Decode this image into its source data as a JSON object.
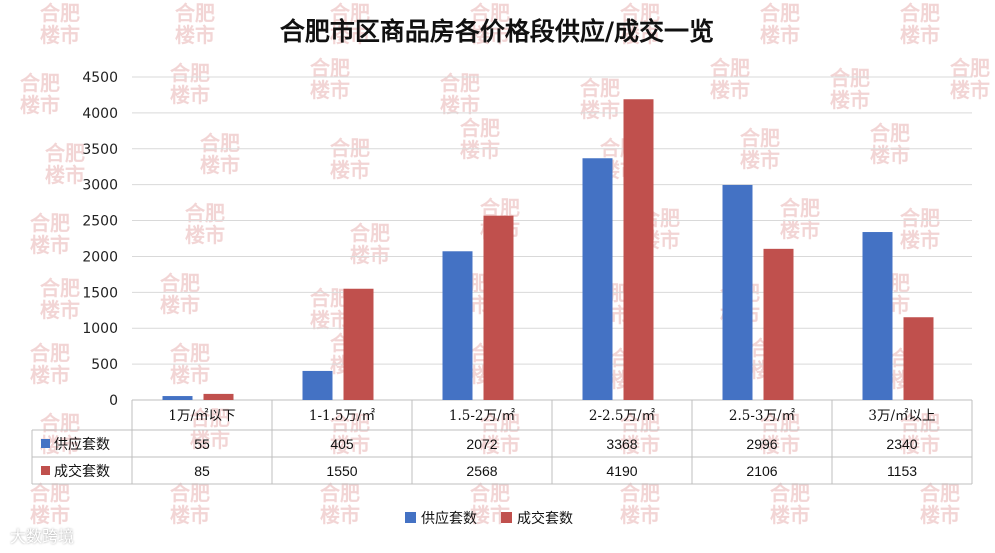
{
  "chart_data": {
    "type": "bar",
    "title": "合肥市区商品房各价格段供应/成交一览",
    "categories": [
      "1万/㎡以下",
      "1-1.5万/㎡",
      "1.5-2万/㎡",
      "2-2.5万/㎡",
      "2.5-3万/㎡",
      "3万/㎡以上"
    ],
    "series": [
      {
        "name": "供应套数",
        "values": [
          55,
          405,
          2072,
          3368,
          2996,
          2340
        ],
        "color": "#4472c4"
      },
      {
        "name": "成交套数",
        "values": [
          85,
          1550,
          2568,
          4190,
          2106,
          1153
        ],
        "color": "#c0504d"
      }
    ],
    "ylim": [
      0,
      4500
    ],
    "yticks": [
      0,
      500,
      1000,
      1500,
      2000,
      2500,
      3000,
      3500,
      4000,
      4500
    ],
    "grid": true,
    "legend": "bottom",
    "data_table": true
  },
  "watermark": {
    "line1": "合肥",
    "line2": "楼市"
  },
  "footer": "大数跨境"
}
